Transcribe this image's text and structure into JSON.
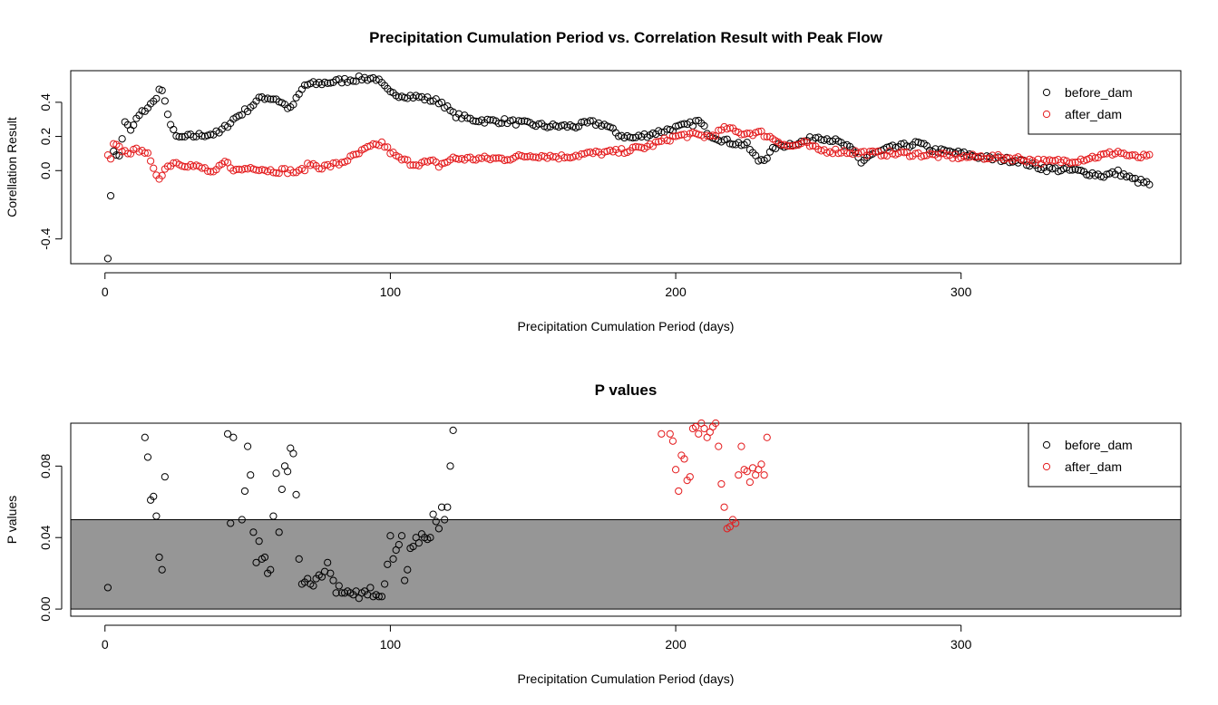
{
  "chart_data": [
    {
      "type": "scatter",
      "title": "Precipitation Cumulation Period vs. Correlation Result with Peak Flow",
      "xlabel": "Precipitation Cumulation Period (days)",
      "ylabel": "Corellation Result",
      "xlim": [
        -12,
        377
      ],
      "ylim": [
        -0.545,
        0.585
      ],
      "xticks": [
        0,
        100,
        200,
        300
      ],
      "yticks": [
        -0.4,
        0.0,
        0.2,
        0.4
      ],
      "ytick_labels": [
        "-0.4",
        "0.0",
        "0.2",
        "0.4"
      ],
      "legend": {
        "placement": "top-right",
        "entries": [
          "before_dam",
          "after_dam"
        ]
      },
      "grid": false,
      "series": [
        {
          "name": "before_dam",
          "color": "#000000",
          "knots": [
            [
              1,
              -0.5
            ],
            [
              2,
              -0.16
            ],
            [
              3,
              0.12
            ],
            [
              5,
              0.08
            ],
            [
              7,
              0.29
            ],
            [
              9,
              0.23
            ],
            [
              11,
              0.3
            ],
            [
              13,
              0.34
            ],
            [
              15,
              0.37
            ],
            [
              17,
              0.4
            ],
            [
              19,
              0.47
            ],
            [
              20,
              0.47
            ],
            [
              22,
              0.32
            ],
            [
              24,
              0.24
            ],
            [
              25,
              0.19
            ],
            [
              40,
              0.22
            ],
            [
              45,
              0.3
            ],
            [
              50,
              0.36
            ],
            [
              55,
              0.43
            ],
            [
              60,
              0.42
            ],
            [
              65,
              0.36
            ],
            [
              70,
              0.5
            ],
            [
              80,
              0.52
            ],
            [
              85,
              0.53
            ],
            [
              90,
              0.54
            ],
            [
              95,
              0.54
            ],
            [
              100,
              0.45
            ],
            [
              110,
              0.43
            ],
            [
              118,
              0.4
            ],
            [
              122,
              0.33
            ],
            [
              128,
              0.3
            ],
            [
              135,
              0.29
            ],
            [
              140,
              0.29
            ],
            [
              145,
              0.28
            ],
            [
              150,
              0.27
            ],
            [
              155,
              0.26
            ],
            [
              165,
              0.26
            ],
            [
              170,
              0.28
            ],
            [
              175,
              0.27
            ],
            [
              180,
              0.21
            ],
            [
              185,
              0.19
            ],
            [
              195,
              0.23
            ],
            [
              205,
              0.27
            ],
            [
              208,
              0.29
            ],
            [
              212,
              0.21
            ],
            [
              218,
              0.17
            ],
            [
              225,
              0.15
            ],
            [
              227,
              0.1
            ],
            [
              229,
              0.06
            ],
            [
              232,
              0.08
            ],
            [
              235,
              0.14
            ],
            [
              245,
              0.17
            ],
            [
              250,
              0.2
            ],
            [
              255,
              0.18
            ],
            [
              260,
              0.14
            ],
            [
              263,
              0.1
            ],
            [
              265,
              0.05
            ],
            [
              268,
              0.09
            ],
            [
              275,
              0.13
            ],
            [
              285,
              0.16
            ],
            [
              290,
              0.12
            ],
            [
              300,
              0.1
            ],
            [
              310,
              0.07
            ],
            [
              320,
              0.06
            ],
            [
              325,
              0.03
            ],
            [
              330,
              0.01
            ],
            [
              340,
              0.0
            ],
            [
              350,
              -0.03
            ],
            [
              355,
              -0.01
            ],
            [
              360,
              -0.05
            ],
            [
              366,
              -0.08
            ]
          ],
          "marker": "open-circle"
        },
        {
          "name": "after_dam",
          "color": "#e41a1c",
          "knots": [
            [
              1,
              0.08
            ],
            [
              2,
              0.06
            ],
            [
              3,
              0.15
            ],
            [
              5,
              0.13
            ],
            [
              7,
              0.11
            ],
            [
              10,
              0.11
            ],
            [
              13,
              0.13
            ],
            [
              15,
              0.09
            ],
            [
              17,
              0.0
            ],
            [
              19,
              -0.04
            ],
            [
              21,
              0.01
            ],
            [
              24,
              0.05
            ],
            [
              30,
              0.03
            ],
            [
              35,
              0.01
            ],
            [
              38,
              -0.02
            ],
            [
              42,
              0.05
            ],
            [
              46,
              0.0
            ],
            [
              52,
              0.02
            ],
            [
              58,
              0.0
            ],
            [
              63,
              0.0
            ],
            [
              68,
              -0.01
            ],
            [
              72,
              0.04
            ],
            [
              76,
              0.02
            ],
            [
              82,
              0.04
            ],
            [
              88,
              0.09
            ],
            [
              92,
              0.13
            ],
            [
              97,
              0.16
            ],
            [
              100,
              0.11
            ],
            [
              103,
              0.07
            ],
            [
              108,
              0.04
            ],
            [
              115,
              0.05
            ],
            [
              117,
              0.03
            ],
            [
              122,
              0.07
            ],
            [
              130,
              0.07
            ],
            [
              140,
              0.07
            ],
            [
              150,
              0.09
            ],
            [
              160,
              0.08
            ],
            [
              170,
              0.1
            ],
            [
              180,
              0.11
            ],
            [
              190,
              0.14
            ],
            [
              200,
              0.2
            ],
            [
              205,
              0.21
            ],
            [
              212,
              0.2
            ],
            [
              218,
              0.25
            ],
            [
              222,
              0.22
            ],
            [
              230,
              0.22
            ],
            [
              240,
              0.14
            ],
            [
              245,
              0.16
            ],
            [
              250,
              0.12
            ],
            [
              260,
              0.11
            ],
            [
              270,
              0.1
            ],
            [
              280,
              0.1
            ],
            [
              290,
              0.09
            ],
            [
              300,
              0.08
            ],
            [
              310,
              0.08
            ],
            [
              320,
              0.07
            ],
            [
              330,
              0.05
            ],
            [
              340,
              0.06
            ],
            [
              350,
              0.09
            ],
            [
              355,
              0.11
            ],
            [
              360,
              0.08
            ],
            [
              366,
              0.08
            ]
          ],
          "marker": "open-circle"
        }
      ]
    },
    {
      "type": "scatter",
      "title": "P values",
      "xlabel": "Precipitation Cumulation Period (days)",
      "ylabel": "P values",
      "xlim": [
        -12,
        377
      ],
      "ylim": [
        -0.004,
        0.104
      ],
      "xticks": [
        0,
        100,
        200,
        300
      ],
      "yticks": [
        0.0,
        0.04,
        0.08
      ],
      "ytick_labels": [
        "0.00",
        "0.04",
        "0.08"
      ],
      "legend": {
        "placement": "top-right",
        "entries": [
          "before_dam",
          "after_dam"
        ]
      },
      "grid": false,
      "significance_band": {
        "y_from": 0.0,
        "y_to": 0.05,
        "color": "#969696"
      },
      "series": [
        {
          "name": "before_dam",
          "color": "#000000",
          "marker": "open-circle",
          "points": [
            [
              1,
              0.012
            ],
            [
              14,
              0.096
            ],
            [
              15,
              0.085
            ],
            [
              16,
              0.061
            ],
            [
              17,
              0.063
            ],
            [
              18,
              0.052
            ],
            [
              19,
              0.029
            ],
            [
              20,
              0.022
            ],
            [
              21,
              0.074
            ],
            [
              43,
              0.098
            ],
            [
              44,
              0.048
            ],
            [
              45,
              0.096
            ],
            [
              48,
              0.05
            ],
            [
              49,
              0.066
            ],
            [
              50,
              0.091
            ],
            [
              51,
              0.075
            ],
            [
              52,
              0.043
            ],
            [
              53,
              0.026
            ],
            [
              54,
              0.038
            ],
            [
              55,
              0.028
            ],
            [
              56,
              0.029
            ],
            [
              57,
              0.02
            ],
            [
              58,
              0.022
            ],
            [
              59,
              0.052
            ],
            [
              60,
              0.076
            ],
            [
              61,
              0.043
            ],
            [
              62,
              0.067
            ],
            [
              63,
              0.08
            ],
            [
              64,
              0.077
            ],
            [
              65,
              0.09
            ],
            [
              66,
              0.087
            ],
            [
              67,
              0.064
            ],
            [
              68,
              0.028
            ],
            [
              69,
              0.014
            ],
            [
              70,
              0.015
            ],
            [
              71,
              0.017
            ],
            [
              72,
              0.014
            ],
            [
              73,
              0.013
            ],
            [
              74,
              0.017
            ],
            [
              75,
              0.019
            ],
            [
              76,
              0.018
            ],
            [
              77,
              0.021
            ],
            [
              78,
              0.026
            ],
            [
              79,
              0.02
            ],
            [
              80,
              0.016
            ],
            [
              81,
              0.009
            ],
            [
              82,
              0.013
            ],
            [
              83,
              0.009
            ],
            [
              84,
              0.009
            ],
            [
              85,
              0.01
            ],
            [
              86,
              0.009
            ],
            [
              87,
              0.008
            ],
            [
              88,
              0.01
            ],
            [
              89,
              0.006
            ],
            [
              90,
              0.009
            ],
            [
              91,
              0.01
            ],
            [
              92,
              0.008
            ],
            [
              93,
              0.012
            ],
            [
              94,
              0.007
            ],
            [
              95,
              0.008
            ],
            [
              96,
              0.007
            ],
            [
              97,
              0.007
            ],
            [
              98,
              0.014
            ],
            [
              99,
              0.025
            ],
            [
              100,
              0.041
            ],
            [
              101,
              0.028
            ],
            [
              102,
              0.033
            ],
            [
              103,
              0.036
            ],
            [
              104,
              0.041
            ],
            [
              105,
              0.016
            ],
            [
              106,
              0.022
            ],
            [
              107,
              0.034
            ],
            [
              108,
              0.035
            ],
            [
              109,
              0.04
            ],
            [
              110,
              0.037
            ],
            [
              111,
              0.042
            ],
            [
              112,
              0.04
            ],
            [
              113,
              0.039
            ],
            [
              114,
              0.04
            ],
            [
              115,
              0.053
            ],
            [
              116,
              0.049
            ],
            [
              117,
              0.045
            ],
            [
              118,
              0.057
            ],
            [
              119,
              0.05
            ],
            [
              120,
              0.057
            ],
            [
              121,
              0.08
            ],
            [
              122,
              0.1
            ]
          ]
        },
        {
          "name": "after_dam",
          "color": "#e41a1c",
          "marker": "open-circle",
          "points": [
            [
              195,
              0.098
            ],
            [
              198,
              0.098
            ],
            [
              199,
              0.094
            ],
            [
              200,
              0.078
            ],
            [
              201,
              0.066
            ],
            [
              202,
              0.086
            ],
            [
              203,
              0.084
            ],
            [
              204,
              0.072
            ],
            [
              205,
              0.074
            ],
            [
              206,
              0.101
            ],
            [
              207,
              0.102
            ],
            [
              208,
              0.098
            ],
            [
              209,
              0.104
            ],
            [
              210,
              0.101
            ],
            [
              211,
              0.096
            ],
            [
              212,
              0.099
            ],
            [
              213,
              0.102
            ],
            [
              214,
              0.104
            ],
            [
              215,
              0.091
            ],
            [
              216,
              0.07
            ],
            [
              217,
              0.057
            ],
            [
              218,
              0.045
            ],
            [
              219,
              0.046
            ],
            [
              220,
              0.05
            ],
            [
              221,
              0.048
            ],
            [
              222,
              0.075
            ],
            [
              223,
              0.091
            ],
            [
              224,
              0.078
            ],
            [
              225,
              0.077
            ],
            [
              226,
              0.071
            ],
            [
              227,
              0.079
            ],
            [
              228,
              0.075
            ],
            [
              229,
              0.078
            ],
            [
              230,
              0.081
            ],
            [
              231,
              0.075
            ],
            [
              232,
              0.096
            ]
          ]
        }
      ]
    }
  ]
}
